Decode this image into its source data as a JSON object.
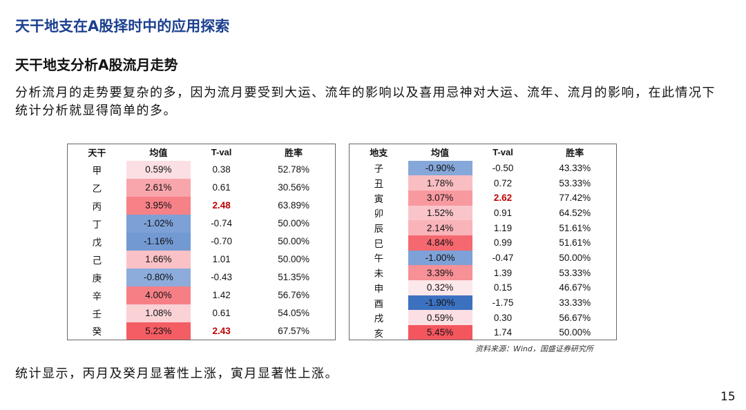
{
  "title": "天干地支在A股择时中的应用探索",
  "subtitle": "天干地支分析A股流月走势",
  "paragraph": "分析流月的走势要复杂的多，因为流月要受到大运、流年的影响以及喜用忌神对大运、流年、流月的影响，在此情况下统计分析就显得简单的多。",
  "colors": {
    "title": "#1b3f8f",
    "significant": "#c00000",
    "positive": "#f4555a",
    "negative": "#3a6fc0"
  },
  "table_left": {
    "headers": [
      "天干",
      "均值",
      "T-val",
      "胜率"
    ],
    "rows": [
      [
        "甲",
        "0.59%",
        "0.38",
        "52.78%"
      ],
      [
        "乙",
        "2.61%",
        "0.61",
        "30.56%"
      ],
      [
        "丙",
        "3.95%",
        "2.48",
        "63.89%"
      ],
      [
        "丁",
        "-1.02%",
        "-0.74",
        "50.00%"
      ],
      [
        "戊",
        "-1.16%",
        "-0.70",
        "50.00%"
      ],
      [
        "己",
        "1.66%",
        "1.01",
        "50.00%"
      ],
      [
        "庚",
        "-0.80%",
        "-0.43",
        "51.35%"
      ],
      [
        "辛",
        "4.00%",
        "1.42",
        "56.76%"
      ],
      [
        "壬",
        "1.08%",
        "0.61",
        "54.05%"
      ],
      [
        "癸",
        "5.23%",
        "2.43",
        "67.57%"
      ]
    ]
  },
  "table_right": {
    "headers": [
      "地支",
      "均值",
      "T-val",
      "胜率"
    ],
    "rows": [
      [
        "子",
        "-0.90%",
        "-0.50",
        "43.33%"
      ],
      [
        "丑",
        "1.78%",
        "0.72",
        "53.33%"
      ],
      [
        "寅",
        "3.07%",
        "2.62",
        "77.42%"
      ],
      [
        "卯",
        "1.52%",
        "0.91",
        "64.52%"
      ],
      [
        "辰",
        "2.14%",
        "1.19",
        "51.61%"
      ],
      [
        "巳",
        "4.84%",
        "0.99",
        "51.61%"
      ],
      [
        "午",
        "-1.00%",
        "-0.47",
        "50.00%"
      ],
      [
        "未",
        "3.39%",
        "1.39",
        "53.33%"
      ],
      [
        "申",
        "0.32%",
        "0.15",
        "46.67%"
      ],
      [
        "酉",
        "-1.90%",
        "-1.75",
        "33.33%"
      ],
      [
        "戌",
        "0.59%",
        "0.30",
        "56.67%"
      ],
      [
        "亥",
        "5.45%",
        "1.74",
        "50.00%"
      ]
    ]
  },
  "source": "资料来源：Wind，国盛证券研究所",
  "conclusion": "统计显示，丙月及癸月显著性上涨，寅月显著性上涨。",
  "page_number": "15"
}
